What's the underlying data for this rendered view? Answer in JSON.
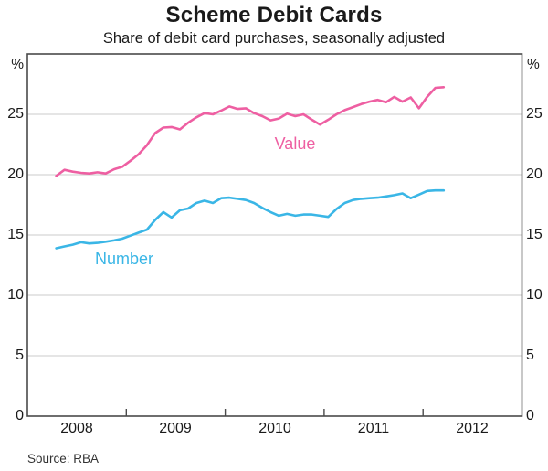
{
  "title": "Scheme Debit Cards",
  "subtitle": "Share of debit card purchases, seasonally adjusted",
  "source": "Source: RBA",
  "axes": {
    "unit_left": "%",
    "unit_right": "%",
    "yticks": [
      0,
      5,
      10,
      15,
      20,
      25
    ],
    "year_labels": [
      "2008",
      "2009",
      "2010",
      "2011",
      "2012"
    ],
    "year_tick_marks": [
      2009,
      2010,
      2011,
      2012
    ]
  },
  "colors": {
    "value_line": "#ee5fa2",
    "number_line": "#3ab6e6",
    "gridline": "#cbcbcb",
    "frame": "#4a4a4a",
    "text": "#1a1a1a"
  },
  "chart_data": {
    "type": "line",
    "title": "Scheme Debit Cards",
    "subtitle": "Share of debit card purchases, seasonally adjusted",
    "ylabel": "%",
    "ylim": [
      0,
      30
    ],
    "xlim_years": [
      2008,
      2013
    ],
    "gridlines": [
      5,
      10,
      15,
      20,
      25
    ],
    "grid": true,
    "legend_position": "inline-labels",
    "x_start_year": 2008.2917,
    "x_step_years": 0.0833333,
    "x_months": [
      "Apr 2008",
      "May 2008",
      "Jun 2008",
      "Jul 2008",
      "Aug 2008",
      "Sep 2008",
      "Oct 2008",
      "Nov 2008",
      "Dec 2008",
      "Jan 2009",
      "Feb 2009",
      "Mar 2009",
      "Apr 2009",
      "May 2009",
      "Jun 2009",
      "Jul 2009",
      "Aug 2009",
      "Sep 2009",
      "Oct 2009",
      "Nov 2009",
      "Dec 2009",
      "Jan 2010",
      "Feb 2010",
      "Mar 2010",
      "Apr 2010",
      "May 2010",
      "Jun 2010",
      "Jul 2010",
      "Aug 2010",
      "Sep 2010",
      "Oct 2010",
      "Nov 2010",
      "Dec 2010",
      "Jan 2011",
      "Feb 2011",
      "Mar 2011",
      "Apr 2011",
      "May 2011",
      "Jun 2011",
      "Jul 2011",
      "Aug 2011",
      "Sep 2011",
      "Oct 2011",
      "Nov 2011",
      "Dec 2011",
      "Jan 2012",
      "Feb 2012",
      "Mar 2012"
    ],
    "series": [
      {
        "name": "Value",
        "color": "#ee5fa2",
        "values": [
          19.9,
          20.4,
          20.25,
          20.15,
          20.1,
          20.2,
          20.1,
          20.45,
          20.65,
          21.15,
          21.7,
          22.45,
          23.45,
          23.9,
          23.95,
          23.75,
          24.3,
          24.75,
          25.1,
          25.0,
          25.3,
          25.65,
          25.45,
          25.5,
          25.1,
          24.85,
          24.5,
          24.65,
          25.05,
          24.85,
          25.0,
          24.55,
          24.15,
          24.55,
          25.0,
          25.35,
          25.6,
          25.85,
          26.05,
          26.2,
          26.0,
          26.45,
          26.05,
          26.4,
          25.5,
          26.45,
          27.2,
          27.25
        ]
      },
      {
        "name": "Number",
        "color": "#3ab6e6",
        "values": [
          13.9,
          14.05,
          14.2,
          14.4,
          14.3,
          14.35,
          14.45,
          14.55,
          14.7,
          14.95,
          15.2,
          15.45,
          16.25,
          16.9,
          16.45,
          17.05,
          17.2,
          17.65,
          17.85,
          17.65,
          18.05,
          18.1,
          18.0,
          17.9,
          17.65,
          17.25,
          16.9,
          16.6,
          16.75,
          16.6,
          16.7,
          16.7,
          16.6,
          16.5,
          17.15,
          17.65,
          17.9,
          18.0,
          18.05,
          18.1,
          18.2,
          18.3,
          18.45,
          18.05,
          18.35,
          18.65,
          18.7,
          18.7
        ]
      }
    ],
    "source": "Source: RBA"
  }
}
